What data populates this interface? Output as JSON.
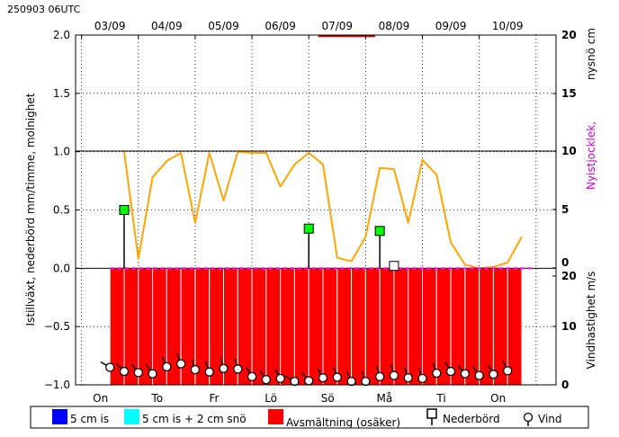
{
  "chart_data": {
    "type": "bar",
    "run_label": "250903 06UTC",
    "date_labels": [
      "03/09",
      "04/09",
      "05/09",
      "06/09",
      "07/09",
      "08/09",
      "09/09",
      "10/09"
    ],
    "day_labels": [
      "On",
      "To",
      "Fr",
      "Lö",
      "Sö",
      "Må",
      "Ti",
      "On"
    ],
    "ylabel_left": "Istillväxt, nederbörd mm/timme, molnighet",
    "ylabel_right_top_1": "nysnö cm",
    "ylabel_right_top_2": "Nyistjocklek,",
    "ylabel_right_bottom": "Vindhastighet m/s",
    "ylim": [
      -1.0,
      2.0
    ],
    "y_ticks": [
      "2.0",
      "1.5",
      "1.0",
      "0.5",
      "0.0",
      "−0.5",
      "−1.0"
    ],
    "right_ticks_top": [
      "20",
      "15",
      "10",
      "5",
      "0"
    ],
    "right_ticks_bottom": [
      "20",
      "10",
      "0"
    ],
    "x_hours": [
      0,
      6,
      12,
      18,
      24,
      30,
      36,
      42,
      48,
      54,
      60,
      66,
      72,
      78,
      84,
      90,
      96,
      102,
      108,
      114,
      120,
      126,
      132,
      138,
      144,
      150,
      156,
      162,
      168
    ],
    "cloudiness": [
      1.0,
      0.08,
      0.78,
      0.92,
      0.99,
      0.39,
      0.99,
      0.58,
      1.0,
      0.99,
      0.99,
      0.7,
      0.89,
      0.99,
      0.89,
      0.09,
      0.06,
      0.27,
      0.86,
      0.85,
      0.39,
      0.93,
      0.8,
      0.22,
      0.03,
      0.0,
      0.01,
      0.05,
      0.27
    ],
    "precip_stems": [
      {
        "hour": 0,
        "value": 0.5
      },
      {
        "hour": 78,
        "value": 0.34
      },
      {
        "hour": 108,
        "value": 0.32
      },
      {
        "hour": 114,
        "value": 0.02
      }
    ],
    "melt_bars": {
      "from_hour": -6,
      "to_hour": 168,
      "step": 6
    },
    "wind": [
      {
        "hour": -6,
        "speed": 3.0,
        "dir": 300
      },
      {
        "hour": 0,
        "speed": 2.3,
        "dir": 315
      },
      {
        "hour": 6,
        "speed": 2.1,
        "dir": 320
      },
      {
        "hour": 12,
        "speed": 1.9,
        "dir": 325
      },
      {
        "hour": 18,
        "speed": 3.1,
        "dir": 335
      },
      {
        "hour": 24,
        "speed": 3.6,
        "dir": 340
      },
      {
        "hour": 30,
        "speed": 2.6,
        "dir": 345
      },
      {
        "hour": 36,
        "speed": 2.2,
        "dir": 340
      },
      {
        "hour": 42,
        "speed": 2.8,
        "dir": 345
      },
      {
        "hour": 48,
        "speed": 2.7,
        "dir": 345
      },
      {
        "hour": 54,
        "speed": 1.4,
        "dir": 330
      },
      {
        "hour": 60,
        "speed": 0.9,
        "dir": 325
      },
      {
        "hour": 66,
        "speed": 1.1,
        "dir": 330
      },
      {
        "hour": 72,
        "speed": 0.6,
        "dir": 300
      },
      {
        "hour": 78,
        "speed": 0.7,
        "dir": 320
      },
      {
        "hour": 84,
        "speed": 1.2,
        "dir": 330
      },
      {
        "hour": 90,
        "speed": 1.3,
        "dir": 340
      },
      {
        "hour": 96,
        "speed": 0.6,
        "dir": 335
      },
      {
        "hour": 102,
        "speed": 0.6,
        "dir": 340
      },
      {
        "hour": 108,
        "speed": 1.4,
        "dir": 345
      },
      {
        "hour": 114,
        "speed": 1.6,
        "dir": 345
      },
      {
        "hour": 120,
        "speed": 1.2,
        "dir": 340
      },
      {
        "hour": 126,
        "speed": 1.1,
        "dir": 340
      },
      {
        "hour": 132,
        "speed": 2.0,
        "dir": 340
      },
      {
        "hour": 138,
        "speed": 2.3,
        "dir": 330
      },
      {
        "hour": 144,
        "speed": 1.9,
        "dir": 320
      },
      {
        "hour": 150,
        "speed": 1.6,
        "dir": 325
      },
      {
        "hour": 156,
        "speed": 1.8,
        "dir": 330
      },
      {
        "hour": 162,
        "speed": 2.4,
        "dir": 335
      }
    ],
    "colors": {
      "cloud": "#ffa500",
      "melt": "#ff0000",
      "snow5": "#0000ff",
      "snow2": "#00ffff",
      "precip": "#00ff00",
      "newice": "#ff00ff",
      "axis": "#000000",
      "right_label_ice": "#cc00cc"
    },
    "legend": [
      {
        "label": "5 cm is",
        "kind": "swatch",
        "color": "#0000ff"
      },
      {
        "label": "5 cm is + 2 cm snö",
        "kind": "swatch",
        "color": "#00ffff"
      },
      {
        "label": "Avsmältning (osäker)",
        "kind": "swatch",
        "color": "#ff0000"
      },
      {
        "label": "Nederbörd",
        "kind": "precip-symbol"
      },
      {
        "label": "Vind",
        "kind": "wind-symbol"
      }
    ]
  }
}
